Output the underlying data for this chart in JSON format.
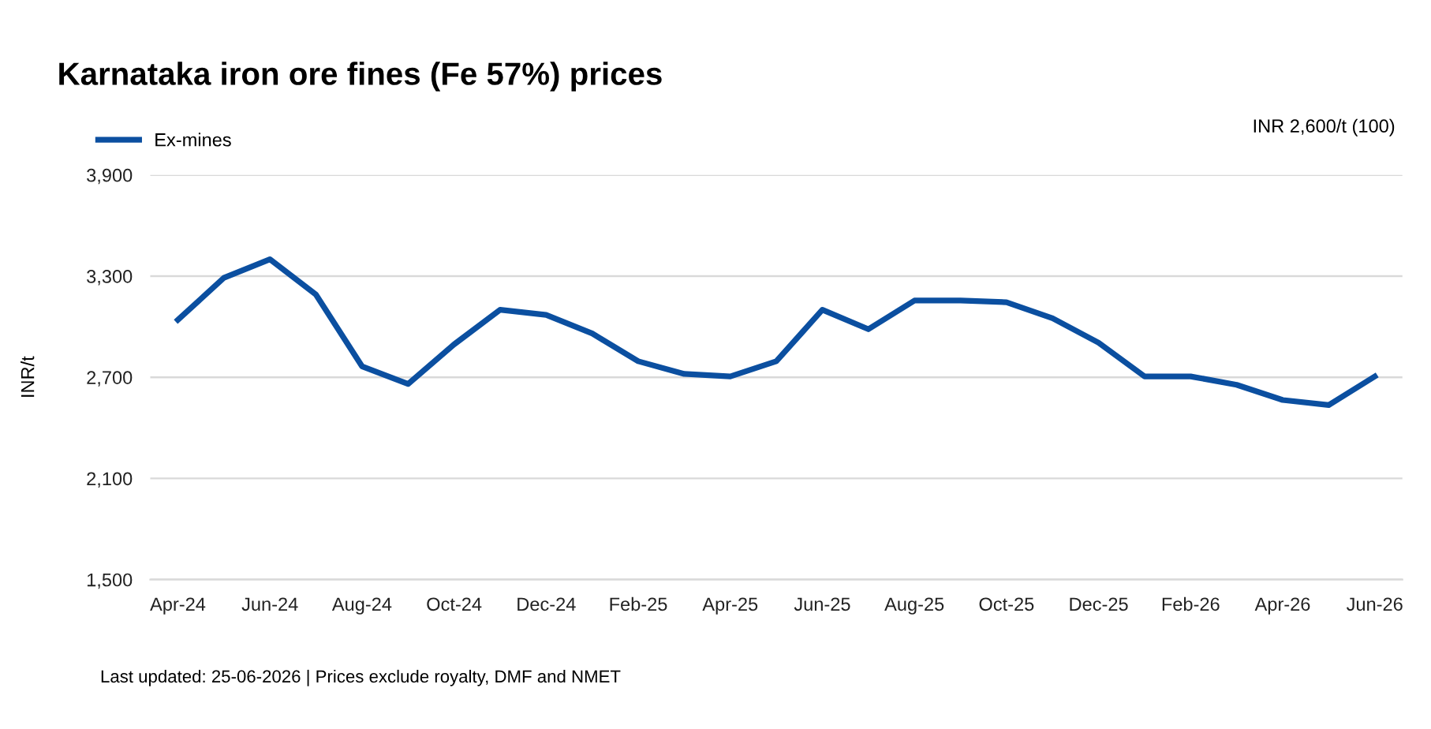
{
  "chart_data": {
    "type": "line",
    "title": "Karnataka iron ore fines (Fe 57%) prices",
    "ylabel": "INR/t",
    "categories": [
      "Apr-24",
      null,
      "Jun-24",
      null,
      "Aug-24",
      null,
      "Oct-24",
      null,
      "Dec-24",
      null,
      "Feb-25",
      null,
      "Apr-25",
      null,
      "Jun-25",
      null,
      "Aug-25",
      null,
      "Oct-25",
      null,
      "Dec-25",
      null,
      "Feb-26",
      null,
      "Apr-26",
      null,
      "Jun-26"
    ],
    "series": [
      {
        "name": "Ex-mines",
        "color": "#0b4fa0",
        "values": [
          3040,
          3290,
          3400,
          3190,
          2765,
          2660,
          2895,
          3100,
          3070,
          2960,
          2795,
          2720,
          2705,
          2795,
          3100,
          2985,
          3155,
          3155,
          3145,
          3050,
          2905,
          2705,
          2705,
          2655,
          2565,
          2535,
          2705
        ]
      }
    ],
    "ylim": [
      1500,
      3900
    ],
    "yticks": [
      {
        "value": 1500,
        "label": "1,500"
      },
      {
        "value": 2100,
        "label": "2,100"
      },
      {
        "value": 2700,
        "label": "2,700"
      },
      {
        "value": 3300,
        "label": "3,300"
      },
      {
        "value": 3900,
        "label": "3,900"
      }
    ],
    "grid": "y",
    "legend": "top left",
    "line_style": "solid",
    "marker": "none",
    "annotations": [
      "INR 2,600/t (100)",
      "Last updated: 25-06-2026 | Prices exclude royalty, DMF and NMET"
    ]
  }
}
